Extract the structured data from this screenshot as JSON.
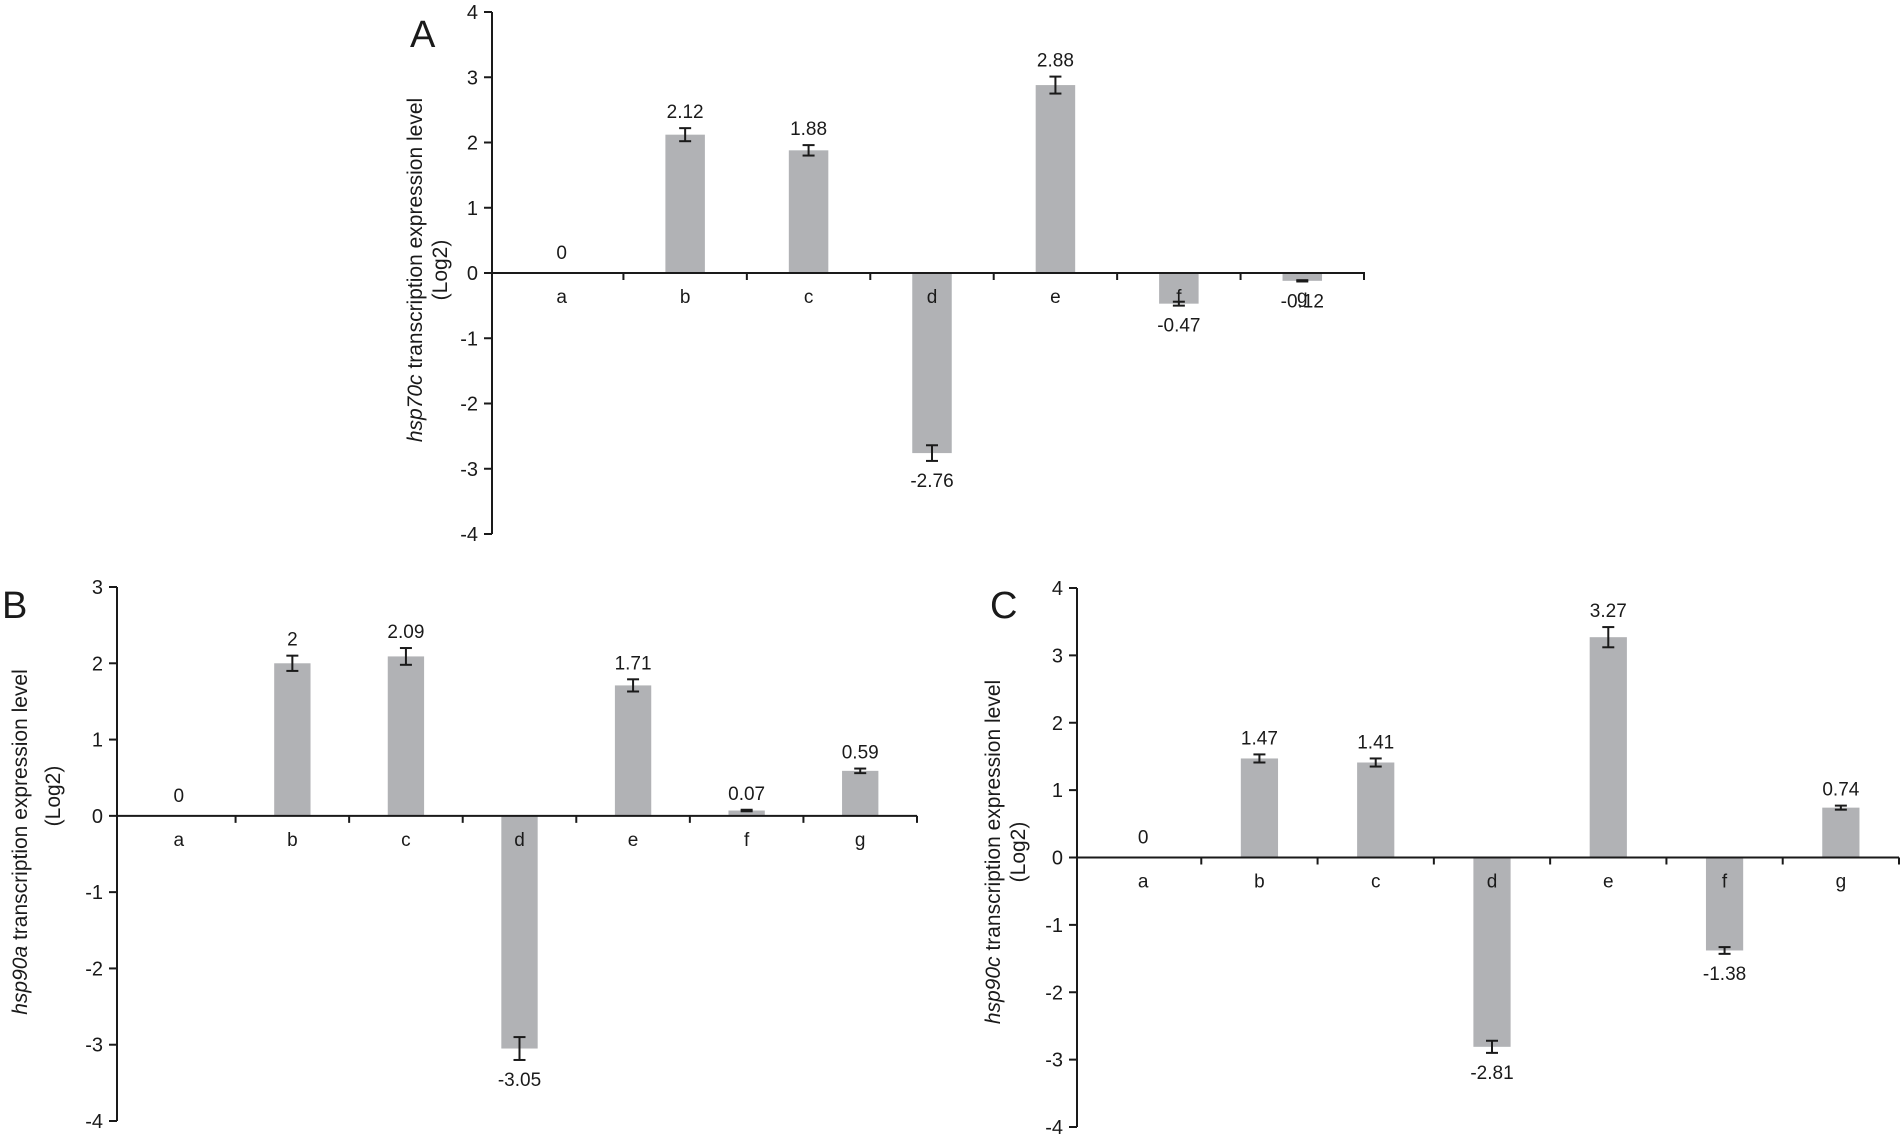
{
  "chart_data": [
    {
      "panel": "A",
      "type": "bar",
      "ylabel_italic": "hsp70c",
      "ylabel_rest": " transcription expression level",
      "ylabel_unit": "(Log2)",
      "ylim": [
        -4,
        4
      ],
      "yticks": [
        4,
        3,
        2,
        1,
        0,
        -1,
        -2,
        -3,
        -4
      ],
      "categories": [
        "a",
        "b",
        "c",
        "d",
        "e",
        "f",
        "g"
      ],
      "values": [
        0,
        2.12,
        1.88,
        -2.76,
        2.88,
        -0.47,
        -0.12
      ],
      "value_labels": [
        "0",
        "2.12",
        "1.88",
        "-2.76",
        "2.88",
        "-0.47",
        "-0.12"
      ],
      "errors": [
        0,
        0.1,
        0.08,
        0.12,
        0.13,
        0.03,
        0.01
      ]
    },
    {
      "panel": "B",
      "type": "bar",
      "ylabel_italic": "hsp90a",
      "ylabel_rest": " transcription expression level",
      "ylabel_unit": "(Log2)",
      "ylim": [
        -4,
        3
      ],
      "yticks": [
        3,
        2,
        1,
        0,
        -1,
        -2,
        -3,
        -4
      ],
      "categories": [
        "a",
        "b",
        "c",
        "d",
        "e",
        "f",
        "g"
      ],
      "values": [
        0,
        2,
        2.09,
        -3.05,
        1.71,
        0.07,
        0.59
      ],
      "value_labels": [
        "0",
        "2",
        "2.09",
        "-3.05",
        "1.71",
        "0.07",
        "0.59"
      ],
      "errors": [
        0,
        0.1,
        0.11,
        0.15,
        0.08,
        0.01,
        0.03
      ]
    },
    {
      "panel": "C",
      "type": "bar",
      "ylabel_italic": "hsp90c",
      "ylabel_rest": " transcription expression level",
      "ylabel_unit": "(Log2)",
      "ylim": [
        -4,
        4
      ],
      "yticks": [
        4,
        3,
        2,
        1,
        0,
        -1,
        -2,
        -3,
        -4
      ],
      "categories": [
        "a",
        "b",
        "c",
        "d",
        "e",
        "f",
        "g"
      ],
      "values": [
        0,
        1.47,
        1.41,
        -2.81,
        3.27,
        -1.38,
        0.74
      ],
      "value_labels": [
        "0",
        "1.47",
        "1.41",
        "-2.81",
        "3.27",
        "-1.38",
        "0.74"
      ],
      "errors": [
        0,
        0.06,
        0.06,
        0.09,
        0.15,
        0.05,
        0.03
      ]
    }
  ],
  "colors": {
    "bar": "#b1b2b5",
    "axis": "#1a1a1a"
  }
}
